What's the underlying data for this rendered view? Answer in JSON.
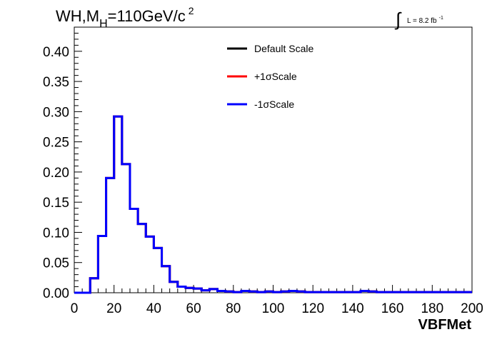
{
  "chart_data": {
    "type": "line",
    "title": "WH,M",
    "title_sub": "H",
    "title_rest": "=110GeV/c",
    "title_sup": "2",
    "lumi_label": "L = 8.2 fb",
    "lumi_sup": "-1",
    "xlabel": "VBFMet",
    "ylabel": "",
    "xlim": [
      0,
      200
    ],
    "ylim": [
      0,
      0.44
    ],
    "xticks": [
      "0",
      "20",
      "40",
      "60",
      "80",
      "100",
      "120",
      "140",
      "160",
      "180",
      "200"
    ],
    "xtick_values": [
      0,
      20,
      40,
      60,
      80,
      100,
      120,
      140,
      160,
      180,
      200
    ],
    "yticks": [
      "0.00",
      "0.05",
      "0.10",
      "0.15",
      "0.20",
      "0.25",
      "0.30",
      "0.35",
      "0.40"
    ],
    "ytick_values": [
      0,
      0.05,
      0.1,
      0.15,
      0.2,
      0.25,
      0.3,
      0.35,
      0.4
    ],
    "bin_width": 4,
    "bin_edges_start": 0,
    "legend_position": "top-center",
    "series": [
      {
        "name": "Default Scale",
        "color": "#000000",
        "values": [
          0,
          0,
          0.024,
          0.094,
          0.19,
          0.292,
          0.213,
          0.139,
          0.114,
          0.093,
          0.074,
          0.044,
          0.018,
          0.01,
          0.008,
          0.007,
          0.004,
          0.006,
          0.003,
          0.002,
          0.001,
          0.003,
          0.002,
          0.001,
          0.002,
          0.001,
          0.002,
          0.003,
          0.002,
          0.001,
          0.001,
          0.001,
          0.001,
          0.001,
          0.001,
          0.001,
          0.003,
          0.002,
          0.001,
          0.001,
          0.001,
          0.001,
          0.001,
          0.001,
          0.001,
          0.001,
          0.001,
          0.001,
          0.001,
          0.001
        ]
      },
      {
        "name": "+1σScale",
        "color": "#ff0000",
        "values": [
          0,
          0,
          0.024,
          0.094,
          0.19,
          0.292,
          0.213,
          0.139,
          0.114,
          0.093,
          0.074,
          0.044,
          0.018,
          0.01,
          0.008,
          0.007,
          0.004,
          0.006,
          0.003,
          0.002,
          0.001,
          0.003,
          0.002,
          0.001,
          0.002,
          0.001,
          0.002,
          0.003,
          0.002,
          0.001,
          0.001,
          0.001,
          0.001,
          0.001,
          0.001,
          0.001,
          0.003,
          0.002,
          0.001,
          0.001,
          0.001,
          0.001,
          0.001,
          0.001,
          0.001,
          0.001,
          0.001,
          0.001,
          0.001,
          0.001
        ]
      },
      {
        "name": "-1σScale",
        "color": "#0000ff",
        "values": [
          0,
          0,
          0.024,
          0.094,
          0.19,
          0.292,
          0.213,
          0.139,
          0.114,
          0.093,
          0.074,
          0.044,
          0.018,
          0.01,
          0.008,
          0.007,
          0.004,
          0.006,
          0.003,
          0.002,
          0.001,
          0.003,
          0.002,
          0.001,
          0.002,
          0.001,
          0.002,
          0.003,
          0.002,
          0.001,
          0.001,
          0.001,
          0.001,
          0.001,
          0.001,
          0.001,
          0.003,
          0.002,
          0.001,
          0.001,
          0.001,
          0.001,
          0.001,
          0.001,
          0.001,
          0.001,
          0.001,
          0.001,
          0.001,
          0.001
        ]
      }
    ]
  }
}
